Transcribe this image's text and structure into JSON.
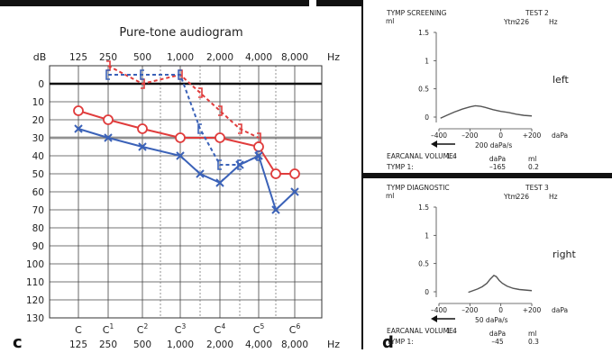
{
  "chart_data": [
    {
      "type": "line",
      "title": "Pure-tone audiogram",
      "panel_label": "c",
      "xlabel_unit": "Hz",
      "ylabel_unit": "dB",
      "x_tick_labels_top": [
        "125",
        "250",
        "500",
        "1,000",
        "2,000",
        "4,000",
        "8,000"
      ],
      "x_tick_labels_bottom": [
        "125",
        "250",
        "500",
        "1,000",
        "2,000",
        "4,000",
        "8,000"
      ],
      "x_note_labels": [
        "C",
        "C",
        "C",
        "C",
        "C",
        "C",
        "C"
      ],
      "x_note_superscripts": [
        "",
        "1",
        "2",
        "3",
        "4",
        "5",
        "6"
      ],
      "y_tick_labels": [
        "0",
        "10",
        "20",
        "30",
        "40",
        "50",
        "60",
        "70",
        "80",
        "90",
        "100",
        "110",
        "120",
        "130"
      ],
      "ylim": [
        -10,
        130
      ],
      "y_inverted": true,
      "grid": true,
      "highlight_line_db": 30,
      "series": [
        {
          "marker": "circle",
          "line": "solid",
          "color": "#e03c3c",
          "x": [
            "125",
            "250",
            "500",
            "1,000",
            "2,000",
            "4,000",
            "6,000",
            "8,000"
          ],
          "y": [
            15,
            20,
            25,
            30,
            30,
            35,
            50,
            50
          ]
        },
        {
          "marker": "x",
          "line": "solid",
          "color": "#3b62b8",
          "x": [
            "125",
            "250",
            "500",
            "1,000",
            "1,500",
            "2,000",
            "3,000",
            "4,000",
            "6,000",
            "8,000"
          ],
          "y": [
            25,
            30,
            35,
            40,
            50,
            55,
            45,
            40,
            70,
            60
          ]
        },
        {
          "marker": "bracket-right",
          "line": "dashed",
          "color": "#e03c3c",
          "x": [
            "250",
            "500",
            "1,000",
            "1,500",
            "2,000",
            "3,000",
            "4,000"
          ],
          "y": [
            -10,
            0,
            -5,
            5,
            15,
            25,
            30
          ]
        },
        {
          "marker": "bracket-left",
          "line": "dashed",
          "color": "#3b62b8",
          "x": [
            "250",
            "500",
            "1,000",
            "1,500",
            "2,000",
            "3,000",
            "4,000"
          ],
          "y": [
            -5,
            -5,
            -5,
            25,
            45,
            45,
            40
          ]
        }
      ]
    },
    {
      "type": "line",
      "title": "TYMP SCREENING",
      "test_label": "TEST 2",
      "ytm_label": "Ytm",
      "ytm_value": "226",
      "ytm_unit": "Hz",
      "ear_label": "left",
      "y_unit": "ml",
      "x_unit": "daPa",
      "y_tick_labels": [
        "1.5",
        "1",
        "0.5",
        "0"
      ],
      "ylim": [
        0,
        1.5
      ],
      "x_tick_labels": [
        "–400",
        "–200",
        "0",
        "+200"
      ],
      "xlim": [
        -400,
        200
      ],
      "rate_label": "200 daPa/s",
      "earcanal_label": "EARCANAL VOLUME:",
      "earcanal_value": "1.4",
      "daPa_header": "daPa",
      "ml_header": "ml",
      "tymp_label": "TYMP 1:",
      "tymp_pressure": "–165",
      "tymp_compliance": "0.2",
      "x": [
        -390,
        -350,
        -300,
        -250,
        -200,
        -165,
        -130,
        -100,
        -50,
        0,
        50,
        100,
        150,
        200
      ],
      "y": [
        -0.02,
        0.03,
        0.09,
        0.14,
        0.18,
        0.2,
        0.19,
        0.17,
        0.13,
        0.1,
        0.08,
        0.05,
        0.03,
        0.02
      ]
    },
    {
      "type": "line",
      "title": "TYMP DIAGNOSTIC",
      "test_label": "TEST 3",
      "ytm_label": "Ytm",
      "ytm_value": "226",
      "ytm_unit": "Hz",
      "ear_label": "right",
      "panel_label": "d",
      "y_unit": "ml",
      "x_unit": "daPa",
      "y_tick_labels": [
        "1.5",
        "1",
        "0.5",
        "0"
      ],
      "ylim": [
        0,
        1.5
      ],
      "x_tick_labels": [
        "–400",
        "–200",
        "0",
        "+200"
      ],
      "xlim": [
        -400,
        200
      ],
      "rate_label": "50 daPa/s",
      "earcanal_label": "EARCANAL VOLUME:",
      "earcanal_value": "1.4",
      "daPa_header": "daPa",
      "ml_header": "ml",
      "tymp_label": "TYMP 1:",
      "tymp_pressure": "–45",
      "tymp_compliance": "0.3",
      "x": [
        -210,
        -180,
        -150,
        -120,
        -90,
        -70,
        -45,
        -30,
        -10,
        10,
        40,
        80,
        120,
        160,
        200
      ],
      "y": [
        -0.01,
        0.02,
        0.05,
        0.09,
        0.15,
        0.22,
        0.29,
        0.27,
        0.2,
        0.15,
        0.1,
        0.06,
        0.04,
        0.03,
        0.02
      ]
    }
  ]
}
